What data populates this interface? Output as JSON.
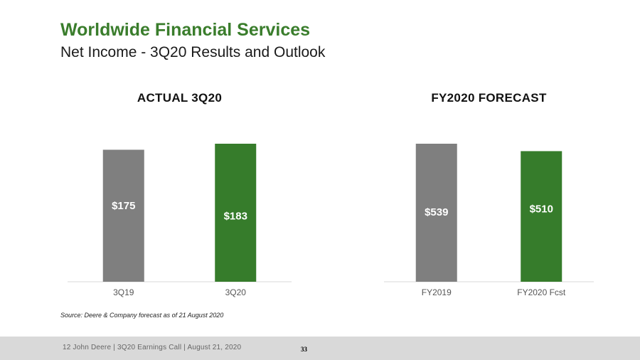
{
  "header": {
    "title": "Worldwide Financial Services",
    "subtitle": "Net Income - 3Q20 Results and Outlook"
  },
  "chart_data": [
    {
      "type": "bar",
      "title": "ACTUAL 3Q20",
      "categories": [
        "3Q19",
        "3Q20"
      ],
      "values": [
        175,
        183
      ],
      "data_labels": [
        "$175",
        "$183"
      ],
      "colors": [
        "#7f7f7f",
        "#367c2b"
      ],
      "xlabel": "",
      "ylabel": "",
      "grid": false
    },
    {
      "type": "bar",
      "title": "FY2020 FORECAST",
      "categories": [
        "FY2019",
        "FY2020 Fcst"
      ],
      "values": [
        539,
        510
      ],
      "data_labels": [
        "$539",
        "$510"
      ],
      "colors": [
        "#7f7f7f",
        "#367c2b"
      ],
      "xlabel": "",
      "ylabel": "",
      "grid": false
    }
  ],
  "source_note": "Source: Deere & Company forecast as of 21 August 2020",
  "footer": {
    "text": "12    John Deere | 3Q20 Earnings Call | August 21, 2020",
    "page_number": "33"
  }
}
